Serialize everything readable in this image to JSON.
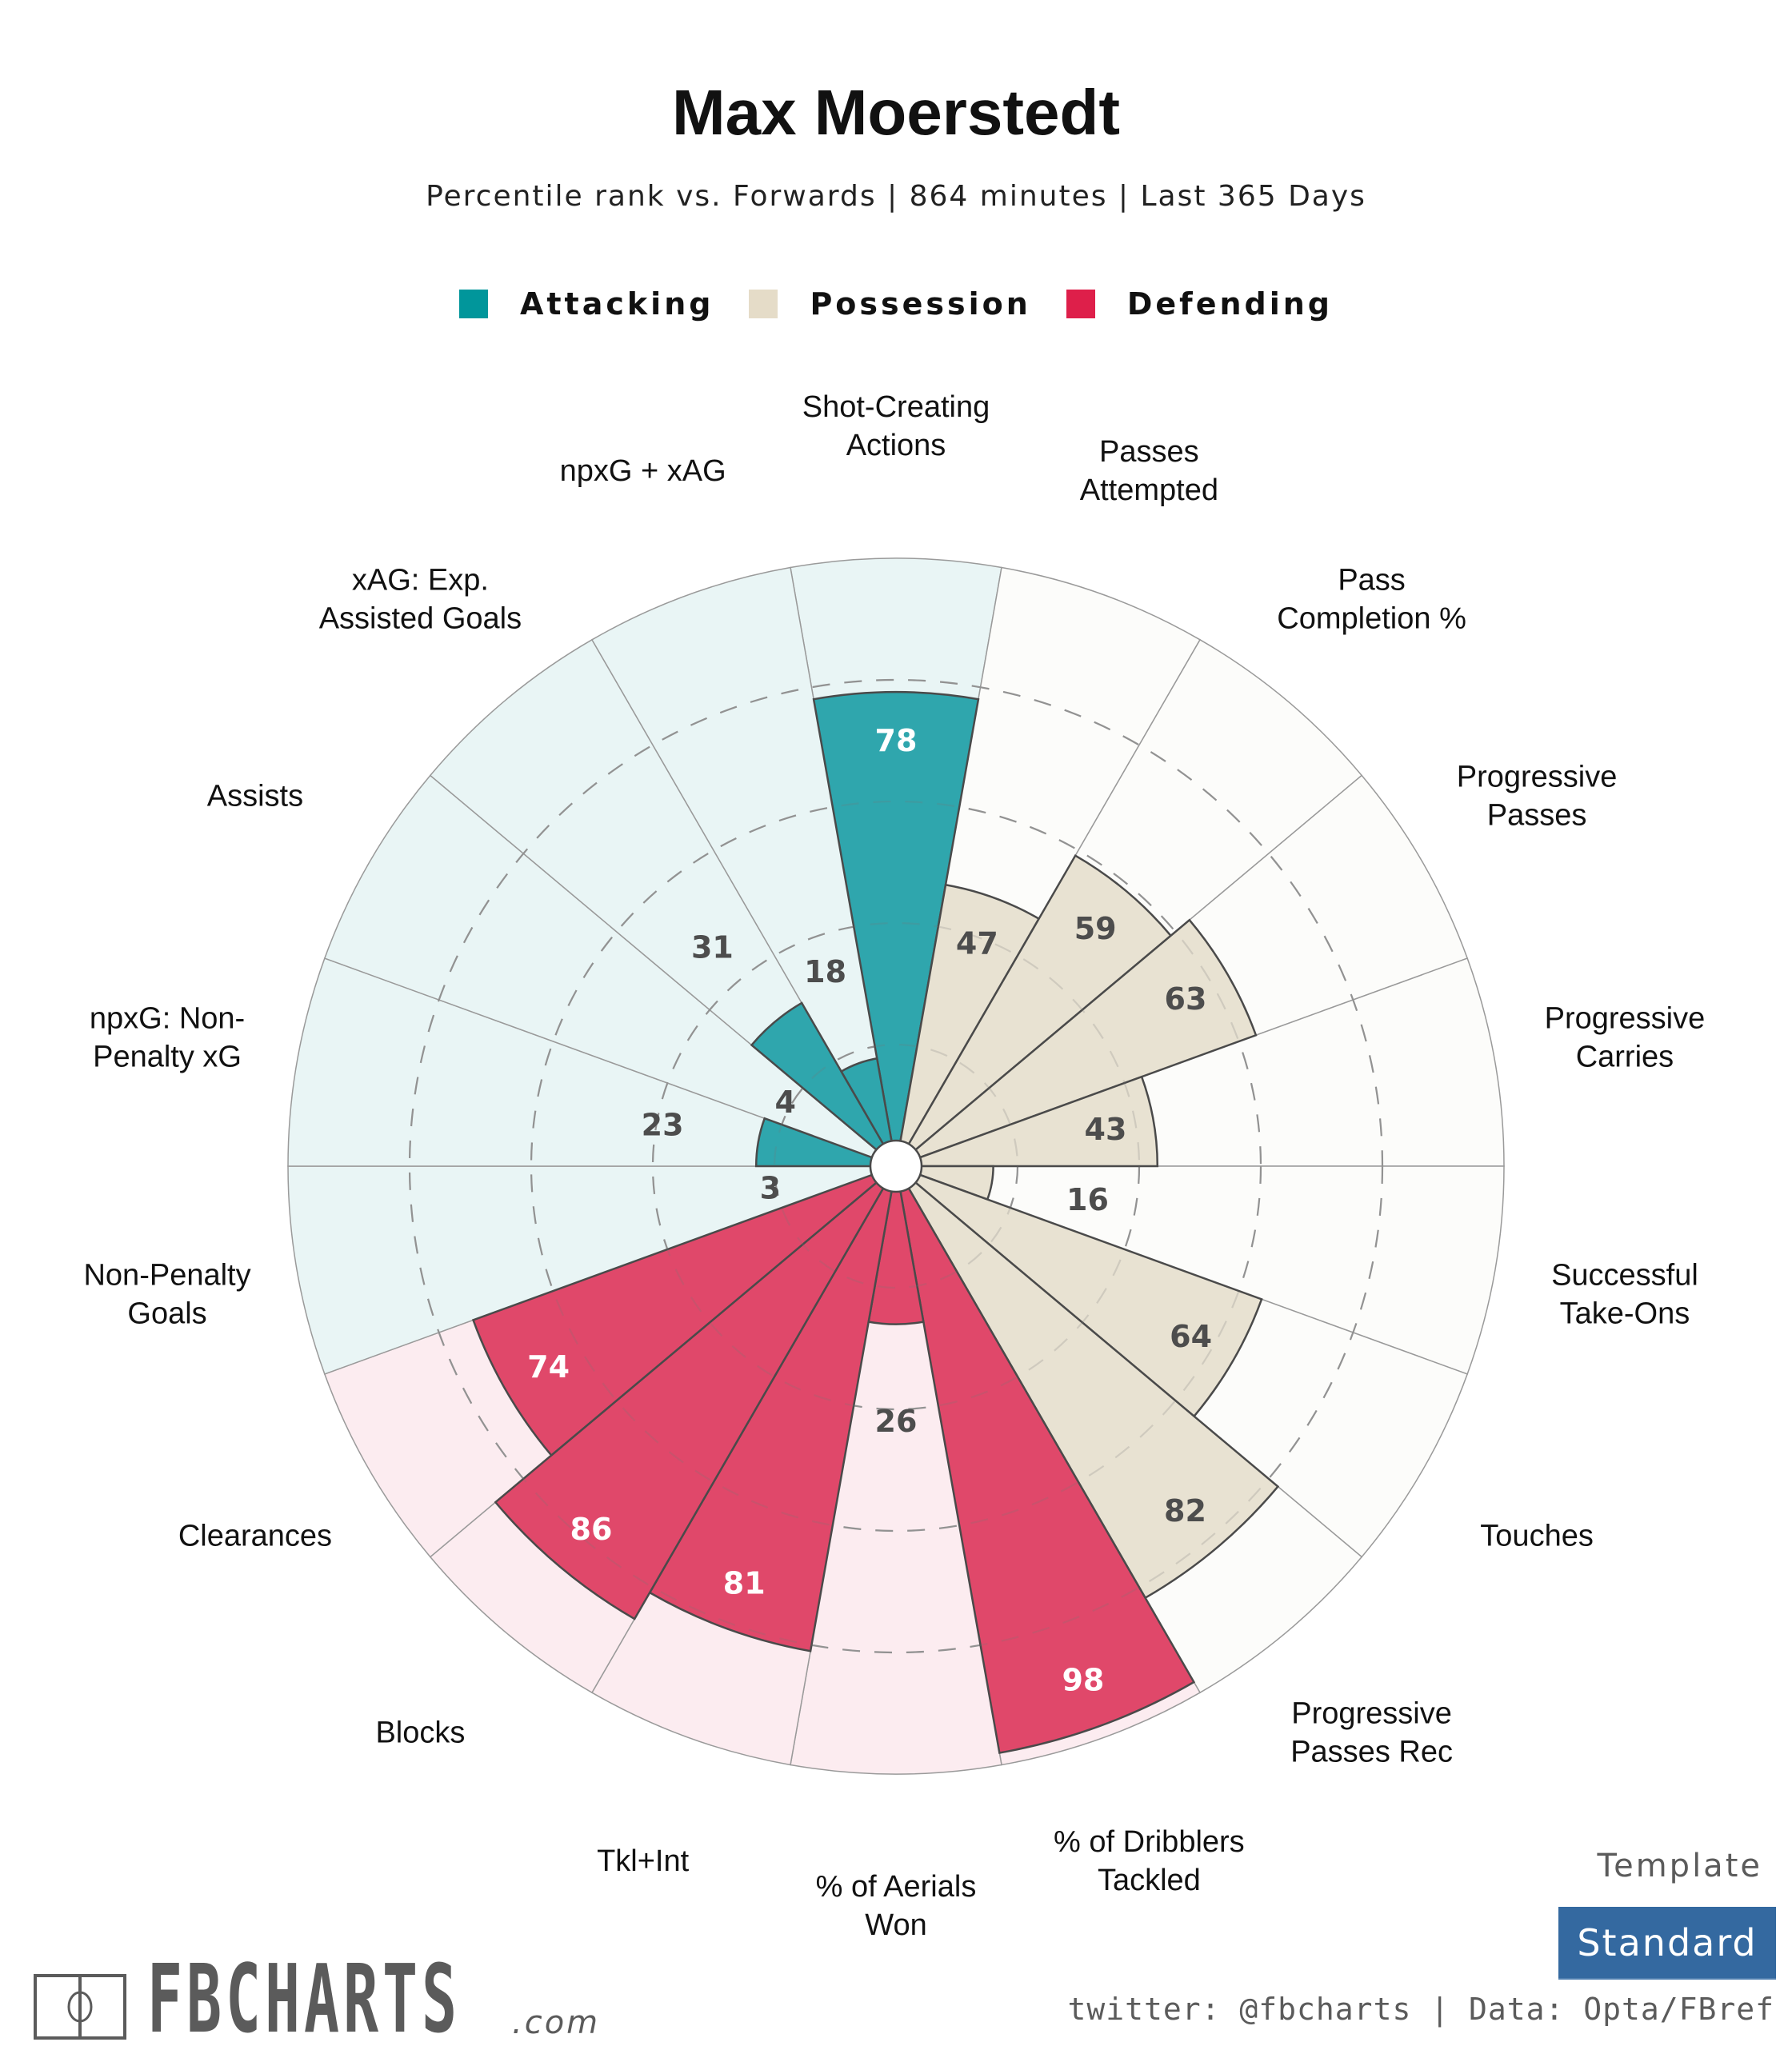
{
  "header": {
    "title": "Max Moerstedt",
    "subtitle": "Percentile rank vs. Forwards | 864 minutes | Last 365 Days"
  },
  "legend": [
    {
      "label": "Attacking",
      "color": "#01969b"
    },
    {
      "label": "Possession",
      "color": "#e5dcc8"
    },
    {
      "label": "Defending",
      "color": "#de1f4a"
    }
  ],
  "chart_data": {
    "type": "polar-bar",
    "title": "Max Moerstedt",
    "subtitle": "Percentile rank vs. Forwards | 864 minutes | Last 365 Days",
    "value_range": [
      0,
      100
    ],
    "gridlines": [
      20,
      40,
      60,
      80
    ],
    "grid": true,
    "legend_position": "top-center",
    "direction": "clockwise-from-top",
    "groups": {
      "Attacking": {
        "bar": "#2fa6ad",
        "background": "#e9f5f5",
        "label_dark": "#4d4d4d",
        "label_light": "#ffffff"
      },
      "Possession": {
        "bar": "#e8e2d2",
        "background": "#fcfcfa",
        "label_dark": "#4d4d4d",
        "label_light": "#4d4d4d"
      },
      "Defending": {
        "bar": "#e0486a",
        "background": "#fcecf0",
        "label_dark": "#4d4d4d",
        "label_light": "#ffffff"
      }
    },
    "categories": [
      {
        "label": [
          "Shot-Creating",
          "Actions"
        ],
        "value": 78,
        "group": "Attacking"
      },
      {
        "label": [
          "Passes",
          "Attempted"
        ],
        "value": 47,
        "group": "Possession"
      },
      {
        "label": [
          "Pass",
          "Completion %"
        ],
        "value": 59,
        "group": "Possession"
      },
      {
        "label": [
          "Progressive",
          "Passes"
        ],
        "value": 63,
        "group": "Possession"
      },
      {
        "label": [
          "Progressive",
          "Carries"
        ],
        "value": 43,
        "group": "Possession"
      },
      {
        "label": [
          "Successful",
          "Take-Ons"
        ],
        "value": 16,
        "group": "Possession"
      },
      {
        "label": [
          "Touches"
        ],
        "value": 64,
        "group": "Possession"
      },
      {
        "label": [
          "Progressive",
          "Passes Rec"
        ],
        "value": 82,
        "group": "Possession"
      },
      {
        "label": [
          "% of Dribblers",
          "Tackled"
        ],
        "value": 98,
        "group": "Defending"
      },
      {
        "label": [
          "% of Aerials",
          "Won"
        ],
        "value": 26,
        "group": "Defending"
      },
      {
        "label": [
          "Tkl+Int"
        ],
        "value": 81,
        "group": "Defending"
      },
      {
        "label": [
          "Blocks"
        ],
        "value": 86,
        "group": "Defending"
      },
      {
        "label": [
          "Clearances"
        ],
        "value": 74,
        "group": "Defending"
      },
      {
        "label": [
          "Non-Penalty",
          "Goals"
        ],
        "value": 3,
        "group": "Attacking"
      },
      {
        "label": [
          "npxG: Non-",
          "Penalty xG"
        ],
        "value": 23,
        "group": "Attacking"
      },
      {
        "label": [
          "Assists"
        ],
        "value": 4,
        "group": "Attacking"
      },
      {
        "label": [
          "xAG: Exp.",
          "Assisted Goals"
        ],
        "value": 31,
        "group": "Attacking"
      },
      {
        "label": [
          "npxG + xAG"
        ],
        "value": 18,
        "group": "Attacking"
      }
    ]
  },
  "branding": {
    "logo_text": "FBCHARTS",
    "logo_suffix": ".com",
    "template_label": "Template",
    "template_value": "Standard",
    "template_color": "#3469a0",
    "credit": "twitter: @fbcharts | Data: Opta/FBref"
  }
}
